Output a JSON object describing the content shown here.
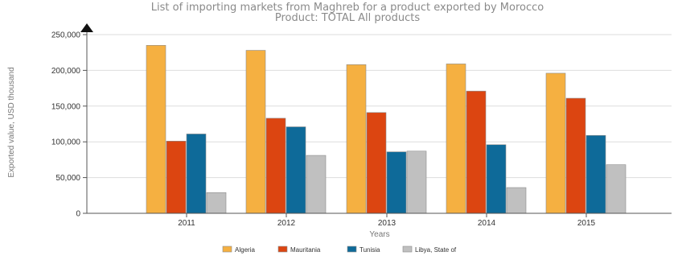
{
  "chart_data": {
    "type": "bar",
    "title": "List of importing markets from Maghreb for a product exported by Morocco",
    "subtitle": "Product: TOTAL All products",
    "xlabel": "Years",
    "ylabel": "Exported value, USD thousand",
    "categories": [
      "2011",
      "2012",
      "2013",
      "2014",
      "2015"
    ],
    "ylim": [
      0,
      250000
    ],
    "yticks": [
      "0",
      "50,000",
      "100,000",
      "150,000",
      "200,000",
      "250,000"
    ],
    "grid": true,
    "legend_position": "bottom",
    "series": [
      {
        "name": "Algeria",
        "color": "#f5b041",
        "values": [
          235000,
          228000,
          208000,
          209000,
          196000
        ]
      },
      {
        "name": "Mauritania",
        "color": "#dc4511",
        "values": [
          101000,
          133000,
          141000,
          171000,
          161000
        ]
      },
      {
        "name": "Tunisia",
        "color": "#0e6a99",
        "values": [
          111000,
          121000,
          86000,
          96000,
          109000
        ]
      },
      {
        "name": "Libya, State of",
        "color": "#c0c0c0",
        "values": [
          29000,
          81000,
          87000,
          36000,
          68000
        ]
      }
    ]
  }
}
